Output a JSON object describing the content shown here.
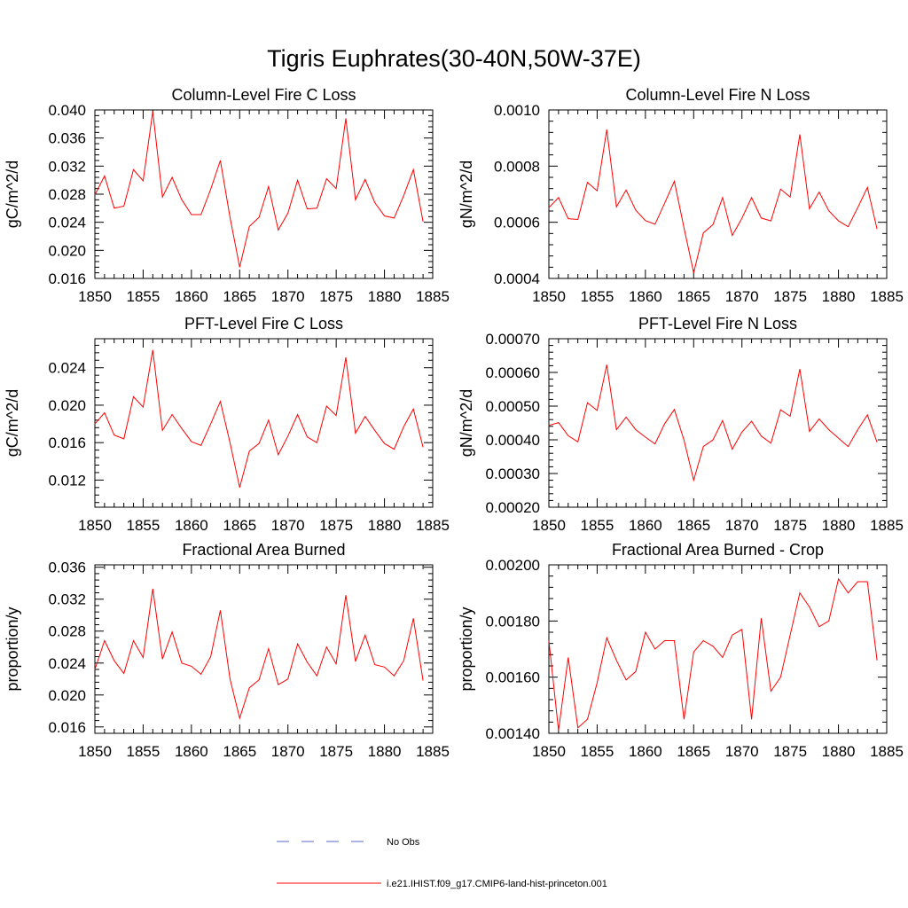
{
  "title": "Tigris Euphrates(30-40N,50W-37E)",
  "legend": [
    {
      "label": "No Obs",
      "color": "#5566cc",
      "dash": true
    },
    {
      "label": "i.e21.IHIST.f09_g17.CMIP6-land-hist-princeton.001",
      "color": "#ff0000",
      "dash": false
    }
  ],
  "chart_data": [
    {
      "type": "line",
      "title": "Column-Level Fire C Loss",
      "ylabel": "gC/m^2/d",
      "xlabel": "",
      "xlim": [
        1850,
        1885
      ],
      "ylim": [
        0.016,
        0.04
      ],
      "xticks": [
        1850,
        1855,
        1860,
        1865,
        1870,
        1875,
        1880,
        1885
      ],
      "yticks": [
        0.016,
        0.02,
        0.024,
        0.028,
        0.032,
        0.036,
        0.04
      ],
      "ytick_labels": [
        "0.016",
        "0.020",
        "0.024",
        "0.028",
        "0.032",
        "0.036",
        "0.040"
      ],
      "x": [
        1850,
        1851,
        1852,
        1853,
        1854,
        1855,
        1856,
        1857,
        1858,
        1859,
        1860,
        1861,
        1862,
        1863,
        1864,
        1865,
        1866,
        1867,
        1868,
        1869,
        1870,
        1871,
        1872,
        1873,
        1874,
        1875,
        1876,
        1877,
        1878,
        1879,
        1880,
        1881,
        1882,
        1883,
        1884
      ],
      "series": [
        {
          "name": "i.e21.IHIST.f09_g17.CMIP6-land-hist-princeton.001",
          "color": "#ff0000",
          "values": [
            0.0279,
            0.0306,
            0.026,
            0.0263,
            0.0315,
            0.0299,
            0.0398,
            0.0276,
            0.0304,
            0.0272,
            0.0251,
            0.0251,
            0.0287,
            0.0328,
            0.0247,
            0.0176,
            0.0234,
            0.0247,
            0.0291,
            0.0229,
            0.0253,
            0.03,
            0.0259,
            0.026,
            0.0302,
            0.0288,
            0.0388,
            0.0272,
            0.0301,
            0.0268,
            0.0249,
            0.0246,
            0.0278,
            0.0315,
            0.0241
          ]
        }
      ]
    },
    {
      "type": "line",
      "title": "Column-Level Fire N Loss",
      "ylabel": "gN/m^2/d",
      "xlabel": "",
      "xlim": [
        1850,
        1885
      ],
      "ylim": [
        0.0004,
        0.001
      ],
      "xticks": [
        1850,
        1855,
        1860,
        1865,
        1870,
        1875,
        1880,
        1885
      ],
      "yticks": [
        0.0004,
        0.0006,
        0.0008,
        0.001
      ],
      "ytick_labels": [
        "0.0004",
        "0.0006",
        "0.0008",
        "0.0010"
      ],
      "x": [
        1850,
        1851,
        1852,
        1853,
        1854,
        1855,
        1856,
        1857,
        1858,
        1859,
        1860,
        1861,
        1862,
        1863,
        1864,
        1865,
        1866,
        1867,
        1868,
        1869,
        1870,
        1871,
        1872,
        1873,
        1874,
        1875,
        1876,
        1877,
        1878,
        1879,
        1880,
        1881,
        1882,
        1883,
        1884
      ],
      "series": [
        {
          "name": "i.e21.IHIST.f09_g17.CMIP6-land-hist-princeton.001",
          "color": "#ff0000",
          "values": [
            0.000652,
            0.000688,
            0.000613,
            0.00061,
            0.000742,
            0.000712,
            0.00093,
            0.000655,
            0.000715,
            0.000643,
            0.000606,
            0.000593,
            0.000668,
            0.000746,
            0.00058,
            0.00042,
            0.000562,
            0.000592,
            0.000688,
            0.000553,
            0.000614,
            0.000688,
            0.000615,
            0.000605,
            0.000718,
            0.00069,
            0.000913,
            0.000648,
            0.000708,
            0.000641,
            0.000605,
            0.000584,
            0.000652,
            0.000724,
            0.000576
          ]
        }
      ]
    },
    {
      "type": "line",
      "title": "PFT-Level Fire C Loss",
      "ylabel": "gC/m^2/d",
      "xlabel": "",
      "xlim": [
        1850,
        1885
      ],
      "ylim": [
        0.0091,
        0.0271
      ],
      "xticks": [
        1850,
        1855,
        1860,
        1865,
        1870,
        1875,
        1880,
        1885
      ],
      "yticks": [
        0.012,
        0.016,
        0.02,
        0.024
      ],
      "ytick_labels": [
        "0.012",
        "0.016",
        "0.020",
        "0.024"
      ],
      "x": [
        1850,
        1851,
        1852,
        1853,
        1854,
        1855,
        1856,
        1857,
        1858,
        1859,
        1860,
        1861,
        1862,
        1863,
        1864,
        1865,
        1866,
        1867,
        1868,
        1869,
        1870,
        1871,
        1872,
        1873,
        1874,
        1875,
        1876,
        1877,
        1878,
        1879,
        1880,
        1881,
        1882,
        1883,
        1884
      ],
      "series": [
        {
          "name": "i.e21.IHIST.f09_g17.CMIP6-land-hist-princeton.001",
          "color": "#ff0000",
          "values": [
            0.018,
            0.0192,
            0.0168,
            0.0164,
            0.0209,
            0.0198,
            0.0259,
            0.0173,
            0.019,
            0.0175,
            0.0161,
            0.0157,
            0.018,
            0.0204,
            0.016,
            0.0112,
            0.0151,
            0.0159,
            0.0184,
            0.0147,
            0.0167,
            0.019,
            0.0166,
            0.016,
            0.0199,
            0.0189,
            0.0251,
            0.017,
            0.0188,
            0.0173,
            0.0159,
            0.0153,
            0.0177,
            0.0196,
            0.0155
          ]
        }
      ]
    },
    {
      "type": "line",
      "title": "PFT-Level Fire N Loss",
      "ylabel": "gN/m^2/d",
      "xlabel": "",
      "xlim": [
        1850,
        1885
      ],
      "ylim": [
        0.0002,
        0.0007
      ],
      "xticks": [
        1850,
        1855,
        1860,
        1865,
        1870,
        1875,
        1880,
        1885
      ],
      "yticks": [
        0.0002,
        0.0003,
        0.0004,
        0.0005,
        0.0006,
        0.0007
      ],
      "ytick_labels": [
        "0.00020",
        "0.00030",
        "0.00040",
        "0.00050",
        "0.00060",
        "0.00070"
      ],
      "x": [
        1850,
        1851,
        1852,
        1853,
        1854,
        1855,
        1856,
        1857,
        1858,
        1859,
        1860,
        1861,
        1862,
        1863,
        1864,
        1865,
        1866,
        1867,
        1868,
        1869,
        1870,
        1871,
        1872,
        1873,
        1874,
        1875,
        1876,
        1877,
        1878,
        1879,
        1880,
        1881,
        1882,
        1883,
        1884
      ],
      "series": [
        {
          "name": "i.e21.IHIST.f09_g17.CMIP6-land-hist-princeton.001",
          "color": "#ff0000",
          "values": [
            0.000443,
            0.000451,
            0.000412,
            0.000394,
            0.00051,
            0.000487,
            0.000623,
            0.00043,
            0.000467,
            0.00043,
            0.000408,
            0.000388,
            0.000448,
            0.00049,
            0.000399,
            0.00028,
            0.00038,
            0.0004,
            0.000457,
            0.000372,
            0.000423,
            0.000455,
            0.000411,
            0.00039,
            0.000489,
            0.00047,
            0.00061,
            0.000425,
            0.000462,
            0.00043,
            0.000405,
            0.00038,
            0.00043,
            0.000474,
            0.000393
          ]
        }
      ]
    },
    {
      "type": "line",
      "title": "Fractional Area Burned",
      "ylabel": "proportion/y",
      "xlabel": "",
      "xlim": [
        1850,
        1885
      ],
      "ylim": [
        0.0152,
        0.0363
      ],
      "xticks": [
        1850,
        1855,
        1860,
        1865,
        1870,
        1875,
        1880,
        1885
      ],
      "yticks": [
        0.016,
        0.02,
        0.024,
        0.028,
        0.032,
        0.036
      ],
      "ytick_labels": [
        "0.016",
        "0.020",
        "0.024",
        "0.028",
        "0.032",
        "0.036"
      ],
      "x": [
        1850,
        1851,
        1852,
        1853,
        1854,
        1855,
        1856,
        1857,
        1858,
        1859,
        1860,
        1861,
        1862,
        1863,
        1864,
        1865,
        1866,
        1867,
        1868,
        1869,
        1870,
        1871,
        1872,
        1873,
        1874,
        1875,
        1876,
        1877,
        1878,
        1879,
        1880,
        1881,
        1882,
        1883,
        1884
      ],
      "series": [
        {
          "name": "i.e21.IHIST.f09_g17.CMIP6-land-hist-princeton.001",
          "color": "#ff0000",
          "values": [
            0.0232,
            0.0268,
            0.0243,
            0.0227,
            0.0268,
            0.0247,
            0.0333,
            0.0245,
            0.0279,
            0.024,
            0.0236,
            0.0226,
            0.0248,
            0.0306,
            0.022,
            0.0171,
            0.0209,
            0.0219,
            0.0258,
            0.0213,
            0.022,
            0.0264,
            0.0241,
            0.0224,
            0.026,
            0.0239,
            0.0325,
            0.0242,
            0.0275,
            0.0238,
            0.0235,
            0.0224,
            0.0243,
            0.0296,
            0.0218
          ]
        }
      ]
    },
    {
      "type": "line",
      "title": "Fractional Area Burned - Crop",
      "ylabel": "proportion/y",
      "xlabel": "",
      "xlim": [
        1850,
        1885
      ],
      "ylim": [
        0.0014,
        0.002
      ],
      "xticks": [
        1850,
        1855,
        1860,
        1865,
        1870,
        1875,
        1880,
        1885
      ],
      "yticks": [
        0.0014,
        0.0016,
        0.0018,
        0.002
      ],
      "ytick_labels": [
        "0.00140",
        "0.00160",
        "0.00180",
        "0.00200"
      ],
      "x": [
        1850,
        1851,
        1852,
        1853,
        1854,
        1855,
        1856,
        1857,
        1858,
        1859,
        1860,
        1861,
        1862,
        1863,
        1864,
        1865,
        1866,
        1867,
        1868,
        1869,
        1870,
        1871,
        1872,
        1873,
        1874,
        1875,
        1876,
        1877,
        1878,
        1879,
        1880,
        1881,
        1882,
        1883,
        1884
      ],
      "series": [
        {
          "name": "i.e21.IHIST.f09_g17.CMIP6-land-hist-princeton.001",
          "color": "#ff0000",
          "values": [
            0.00173,
            0.00141,
            0.00167,
            0.00142,
            0.00145,
            0.00158,
            0.00174,
            0.00166,
            0.00159,
            0.00162,
            0.00176,
            0.0017,
            0.00173,
            0.00173,
            0.00145,
            0.00169,
            0.00173,
            0.00171,
            0.00167,
            0.00175,
            0.00177,
            0.00145,
            0.00181,
            0.00155,
            0.0016,
            0.00175,
            0.0019,
            0.00185,
            0.00178,
            0.0018,
            0.00195,
            0.0019,
            0.00194,
            0.00194,
            0.00166
          ]
        }
      ]
    }
  ]
}
